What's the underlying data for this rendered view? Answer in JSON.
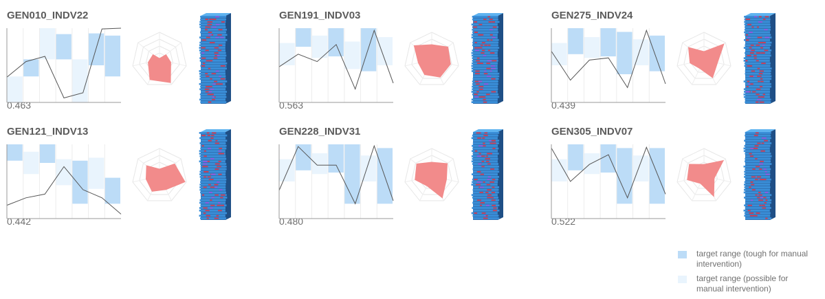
{
  "colors": {
    "target_range_tough": "#bcdcf7",
    "target_range_possible": "#e9f4fd",
    "line": "#555555",
    "radar_fill": "#f28b8b",
    "axis": "#999999",
    "grid": "#e6e6e6",
    "building_primary": "#3a8fd9",
    "building_accent": "#d23a4f",
    "building_highlight": "#9a55e0"
  },
  "chart_data": [
    {
      "type": "line",
      "title": "GEN010_INDV22",
      "score": "0.463",
      "x": [
        0,
        1,
        2,
        3,
        4,
        5,
        6
      ],
      "values": [
        0.34,
        0.55,
        0.62,
        0.06,
        0.13,
        0.99,
        1.0
      ],
      "ylim": [
        0,
        1
      ],
      "target_ranges": [
        {
          "kind": "possible",
          "from": 0.0,
          "to": 0.35
        },
        {
          "kind": "tough",
          "from": 0.35,
          "to": 0.58
        },
        {
          "kind": "possible",
          "from": 0.58,
          "to": 1.0
        },
        {
          "kind": "tough",
          "from": 0.58,
          "to": 0.92
        },
        {
          "kind": "possible",
          "from": 0.0,
          "to": 0.58
        },
        {
          "kind": "tough",
          "from": 0.5,
          "to": 0.93
        },
        {
          "kind": "tough",
          "from": 0.35,
          "to": 0.9
        }
      ],
      "radar": [
        0.05,
        0.3,
        0.42,
        0.92,
        0.8,
        0.42,
        0.3
      ],
      "building_seed": 1
    },
    {
      "type": "line",
      "title": "GEN191_INDV03",
      "score": "0.563",
      "x": [
        0,
        1,
        2,
        3,
        4,
        5,
        6
      ],
      "values": [
        0.48,
        0.65,
        0.55,
        0.78,
        0.18,
        0.97,
        0.26
      ],
      "ylim": [
        0,
        1
      ],
      "target_ranges": [
        {
          "kind": "possible",
          "from": 0.5,
          "to": 0.8
        },
        {
          "kind": "tough",
          "from": 0.75,
          "to": 1.0
        },
        {
          "kind": "possible",
          "from": 0.6,
          "to": 0.9
        },
        {
          "kind": "tough",
          "from": 0.62,
          "to": 1.0
        },
        {
          "kind": "possible",
          "from": 0.45,
          "to": 0.82
        },
        {
          "kind": "tough",
          "from": 0.42,
          "to": 1.0
        },
        {
          "kind": "possible",
          "from": 0.5,
          "to": 0.88
        }
      ],
      "radar": [
        0.55,
        0.75,
        0.7,
        0.7,
        0.6,
        0.5,
        0.82
      ],
      "building_seed": 2
    },
    {
      "type": "line",
      "title": "GEN275_INDV24",
      "score": "0.439",
      "x": [
        0,
        1,
        2,
        3,
        4,
        5,
        6
      ],
      "values": [
        0.69,
        0.3,
        0.57,
        0.6,
        0.2,
        0.97,
        0.25
      ],
      "ylim": [
        0,
        1
      ],
      "target_ranges": [
        {
          "kind": "possible",
          "from": 0.5,
          "to": 0.8
        },
        {
          "kind": "tough",
          "from": 0.65,
          "to": 1.0
        },
        {
          "kind": "possible",
          "from": 0.6,
          "to": 0.88
        },
        {
          "kind": "tough",
          "from": 0.62,
          "to": 1.0
        },
        {
          "kind": "tough",
          "from": 0.38,
          "to": 0.95
        },
        {
          "kind": "possible",
          "from": 0.5,
          "to": 0.85
        },
        {
          "kind": "tough",
          "from": 0.42,
          "to": 0.9
        }
      ],
      "radar": [
        0.3,
        0.92,
        0.5,
        0.72,
        0.35,
        0.52,
        0.72
      ],
      "building_seed": 3
    },
    {
      "type": "line",
      "title": "GEN121_INDV13",
      "score": "0.442",
      "x": [
        0,
        1,
        2,
        3,
        4,
        5,
        6
      ],
      "values": [
        0.18,
        0.28,
        0.33,
        0.7,
        0.39,
        0.28,
        0.06
      ],
      "ylim": [
        0,
        1
      ],
      "target_ranges": [
        {
          "kind": "tough",
          "from": 0.78,
          "to": 1.0
        },
        {
          "kind": "possible",
          "from": 0.6,
          "to": 0.9
        },
        {
          "kind": "tough",
          "from": 0.75,
          "to": 1.0
        },
        {
          "kind": "possible",
          "from": 0.45,
          "to": 0.8
        },
        {
          "kind": "tough",
          "from": 0.2,
          "to": 0.78
        },
        {
          "kind": "possible",
          "from": 0.4,
          "to": 0.82
        },
        {
          "kind": "tough",
          "from": 0.2,
          "to": 0.55
        }
      ],
      "radar": [
        0.25,
        0.7,
        0.95,
        0.55,
        0.62,
        0.5,
        0.6
      ],
      "building_seed": 4
    },
    {
      "type": "line",
      "title": "GEN228_INDV31",
      "score": "0.480",
      "x": [
        0,
        1,
        2,
        3,
        4,
        5,
        6
      ],
      "values": [
        0.38,
        0.97,
        0.72,
        0.72,
        0.2,
        0.98,
        0.24
      ],
      "ylim": [
        0,
        1
      ],
      "target_ranges": [
        {
          "kind": "possible",
          "from": 0.5,
          "to": 0.8
        },
        {
          "kind": "tough",
          "from": 0.65,
          "to": 1.0
        },
        {
          "kind": "possible",
          "from": 0.6,
          "to": 0.88
        },
        {
          "kind": "tough",
          "from": 0.62,
          "to": 1.0
        },
        {
          "kind": "tough",
          "from": 0.2,
          "to": 1.0
        },
        {
          "kind": "possible",
          "from": 0.5,
          "to": 0.85
        },
        {
          "kind": "tough",
          "from": 0.2,
          "to": 0.95
        }
      ],
      "radar": [
        0.5,
        0.72,
        0.55,
        0.88,
        0.4,
        0.62,
        0.7
      ],
      "building_seed": 5
    },
    {
      "type": "line",
      "title": "GEN305_INDV07",
      "score": "0.522",
      "x": [
        0,
        1,
        2,
        3,
        4,
        5,
        6
      ],
      "values": [
        0.95,
        0.5,
        0.73,
        0.86,
        0.28,
        0.96,
        0.33
      ],
      "ylim": [
        0,
        1
      ],
      "target_ranges": [
        {
          "kind": "possible",
          "from": 0.5,
          "to": 0.8
        },
        {
          "kind": "tough",
          "from": 0.65,
          "to": 1.0
        },
        {
          "kind": "possible",
          "from": 0.6,
          "to": 0.88
        },
        {
          "kind": "tough",
          "from": 0.62,
          "to": 1.0
        },
        {
          "kind": "tough",
          "from": 0.2,
          "to": 0.95
        },
        {
          "kind": "possible",
          "from": 0.5,
          "to": 0.85
        },
        {
          "kind": "tough",
          "from": 0.2,
          "to": 0.95
        }
      ],
      "radar": [
        0.42,
        0.9,
        0.38,
        0.82,
        0.3,
        0.62,
        0.68
      ],
      "building_seed": 6
    }
  ],
  "legend": [
    {
      "kind": "tough",
      "label": "target range (tough for manual intervention)"
    },
    {
      "kind": "possible",
      "label": "target range (possible for manual intervention)"
    }
  ]
}
